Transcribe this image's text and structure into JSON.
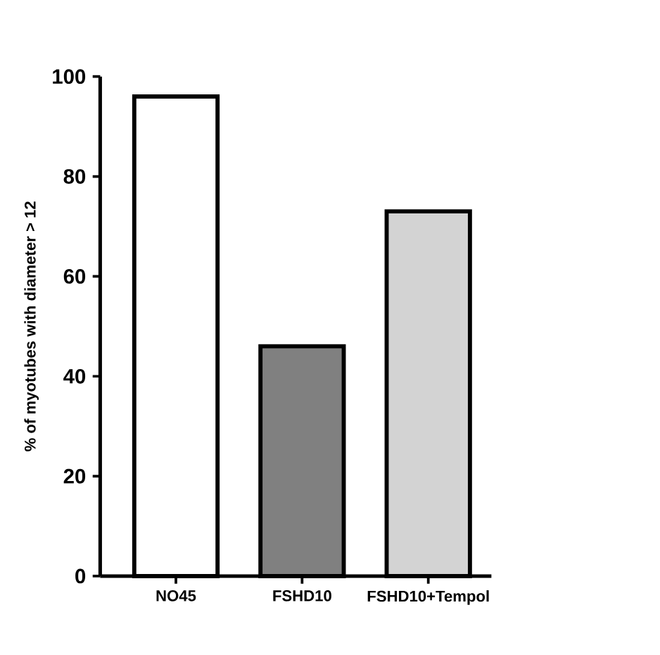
{
  "chart_data": {
    "type": "bar",
    "ylabel": "% of myotubes with diameter > 12",
    "categories": [
      "NO45",
      "FSHD10",
      "FSHD10+Tempol"
    ],
    "values": [
      96,
      46,
      73
    ],
    "colors": [
      "#ffffff",
      "#808080",
      "#d3d3d3"
    ],
    "ylim": [
      0,
      100
    ],
    "yticks": [
      0,
      20,
      40,
      60,
      80,
      100
    ]
  }
}
